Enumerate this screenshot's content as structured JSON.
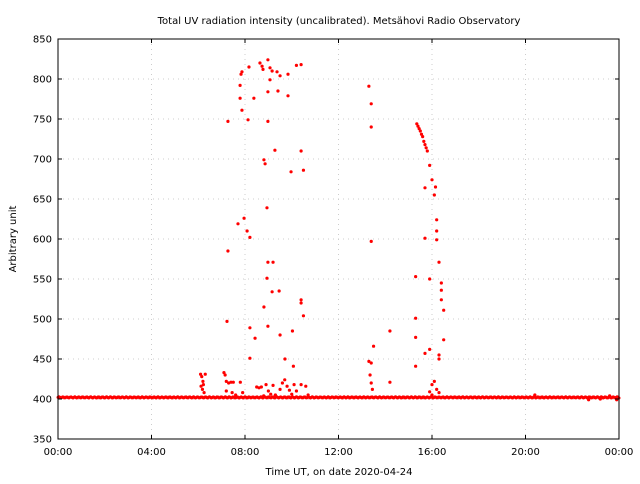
{
  "chart_data": {
    "type": "scatter",
    "title": "Total UV radiation intensity (uncalibrated). Metsähovi Radio Observatory",
    "xlabel": "Time UT, on date 2020-04-24",
    "ylabel": "Arbitrary unit",
    "xlim": [
      0,
      24
    ],
    "ylim": [
      350,
      850
    ],
    "grid": true,
    "x_ticks": [
      {
        "value": 0,
        "label": "00:00"
      },
      {
        "value": 4,
        "label": "04:00"
      },
      {
        "value": 8,
        "label": "08:00"
      },
      {
        "value": 12,
        "label": "12:00"
      },
      {
        "value": 16,
        "label": "16:00"
      },
      {
        "value": 20,
        "label": "20:00"
      },
      {
        "value": 24,
        "label": "00:00"
      }
    ],
    "y_ticks": [
      350,
      400,
      450,
      500,
      550,
      600,
      650,
      700,
      750,
      800,
      850
    ],
    "point_color": "#ff0000",
    "baseline": {
      "start": 0,
      "end": 24,
      "step": 0.04,
      "value": 402
    },
    "points": [
      [
        6.1,
        431
      ],
      [
        6.15,
        428
      ],
      [
        6.2,
        422
      ],
      [
        6.12,
        416
      ],
      [
        6.18,
        412
      ],
      [
        6.25,
        408
      ],
      [
        6.3,
        431
      ],
      [
        6.22,
        418
      ],
      [
        7.1,
        433
      ],
      [
        7.15,
        430
      ],
      [
        7.2,
        422
      ],
      [
        7.3,
        420
      ],
      [
        7.4,
        421
      ],
      [
        7.5,
        421
      ],
      [
        7.6,
        405
      ],
      [
        7.2,
        410
      ],
      [
        7.45,
        408
      ],
      [
        7.8,
        421
      ],
      [
        7.9,
        408
      ],
      [
        7.27,
        747
      ],
      [
        7.27,
        585
      ],
      [
        7.23,
        497
      ],
      [
        7.7,
        619
      ],
      [
        7.96,
        626
      ],
      [
        7.83,
        806
      ],
      [
        7.87,
        809
      ],
      [
        7.79,
        792
      ],
      [
        7.79,
        776
      ],
      [
        7.87,
        761
      ],
      [
        8.09,
        610
      ],
      [
        8.21,
        602
      ],
      [
        8.13,
        749
      ],
      [
        8.17,
        815
      ],
      [
        8.21,
        489
      ],
      [
        8.21,
        451
      ],
      [
        8.38,
        776
      ],
      [
        8.43,
        476
      ],
      [
        8.64,
        820
      ],
      [
        8.73,
        816
      ],
      [
        8.77,
        812
      ],
      [
        8.81,
        515
      ],
      [
        8.81,
        699
      ],
      [
        8.86,
        694
      ],
      [
        8.94,
        639
      ],
      [
        8.98,
        824
      ],
      [
        8.98,
        747
      ],
      [
        8.98,
        784
      ],
      [
        8.94,
        551
      ],
      [
        8.98,
        571
      ],
      [
        9.2,
        571
      ],
      [
        9.16,
        534
      ],
      [
        8.98,
        491
      ],
      [
        9.07,
        799
      ],
      [
        9.07,
        814
      ],
      [
        9.16,
        810
      ],
      [
        9.28,
        711
      ],
      [
        9.37,
        809
      ],
      [
        9.41,
        785
      ],
      [
        9.5,
        804
      ],
      [
        9.46,
        535
      ],
      [
        9.5,
        480
      ],
      [
        9.71,
        450
      ],
      [
        9.84,
        806
      ],
      [
        9.84,
        779
      ],
      [
        9.97,
        684
      ],
      [
        10.03,
        485
      ],
      [
        10.07,
        441
      ],
      [
        10.2,
        817
      ],
      [
        10.4,
        818
      ],
      [
        10.4,
        710
      ],
      [
        10.5,
        686
      ],
      [
        10.4,
        524
      ],
      [
        10.4,
        520
      ],
      [
        10.5,
        504
      ],
      [
        8.5,
        415
      ],
      [
        8.6,
        414
      ],
      [
        8.7,
        415
      ],
      [
        8.9,
        418
      ],
      [
        9.0,
        410
      ],
      [
        9.2,
        417
      ],
      [
        9.3,
        405
      ],
      [
        9.5,
        412
      ],
      [
        9.6,
        420
      ],
      [
        9.7,
        424
      ],
      [
        9.8,
        416
      ],
      [
        9.9,
        411
      ],
      [
        10.0,
        406
      ],
      [
        10.1,
        418
      ],
      [
        10.2,
        410
      ],
      [
        10.4,
        418
      ],
      [
        10.6,
        416
      ],
      [
        10.7,
        405
      ],
      [
        8.8,
        404
      ],
      [
        9.1,
        406
      ],
      [
        13.3,
        791
      ],
      [
        13.4,
        769
      ],
      [
        13.4,
        740
      ],
      [
        13.4,
        597
      ],
      [
        13.5,
        466
      ],
      [
        13.4,
        445
      ],
      [
        13.3,
        447
      ],
      [
        13.35,
        430
      ],
      [
        13.4,
        420
      ],
      [
        13.45,
        412
      ],
      [
        14.2,
        485
      ],
      [
        14.2,
        421
      ],
      [
        15.35,
        744
      ],
      [
        15.4,
        741
      ],
      [
        15.45,
        738
      ],
      [
        15.5,
        735
      ],
      [
        15.55,
        731
      ],
      [
        15.6,
        728
      ],
      [
        15.65,
        722
      ],
      [
        15.7,
        718
      ],
      [
        15.75,
        714
      ],
      [
        15.8,
        710
      ],
      [
        15.9,
        692
      ],
      [
        16.0,
        674
      ],
      [
        16.1,
        655
      ],
      [
        16.15,
        665
      ],
      [
        16.2,
        624
      ],
      [
        16.2,
        610
      ],
      [
        16.2,
        599
      ],
      [
        16.3,
        571
      ],
      [
        16.4,
        545
      ],
      [
        16.4,
        536
      ],
      [
        16.4,
        524
      ],
      [
        16.5,
        511
      ],
      [
        16.5,
        474
      ],
      [
        16.3,
        455
      ],
      [
        16.3,
        450
      ],
      [
        15.9,
        550
      ],
      [
        15.7,
        601
      ],
      [
        15.7,
        664
      ],
      [
        15.3,
        553
      ],
      [
        15.3,
        501
      ],
      [
        15.3,
        477
      ],
      [
        15.3,
        441
      ],
      [
        15.7,
        457
      ],
      [
        15.9,
        462
      ],
      [
        16.0,
        418
      ],
      [
        15.9,
        409
      ],
      [
        16.1,
        422
      ],
      [
        16.2,
        412
      ],
      [
        16.3,
        408
      ],
      [
        16.0,
        405
      ],
      [
        20.4,
        405
      ],
      [
        22.7,
        399
      ],
      [
        23.2,
        400
      ],
      [
        23.6,
        404
      ],
      [
        23.9,
        399
      ]
    ]
  }
}
